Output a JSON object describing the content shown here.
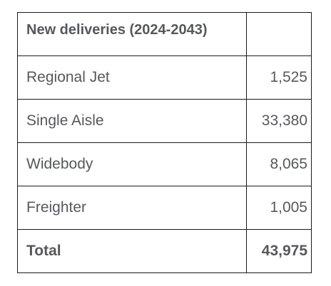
{
  "table": {
    "header": {
      "label": "New deliveries (2024-2043)",
      "value": ""
    },
    "rows": [
      {
        "label": "Regional Jet",
        "value": "1,525"
      },
      {
        "label": "Single Aisle",
        "value": "33,380"
      },
      {
        "label": "Widebody",
        "value": "8,065"
      },
      {
        "label": "Freighter",
        "value": "1,005"
      }
    ],
    "total": {
      "label": "Total",
      "value": "43,975"
    }
  },
  "colors": {
    "text": "#55585c",
    "border": "#1a1a1a",
    "background": "#ffffff"
  }
}
